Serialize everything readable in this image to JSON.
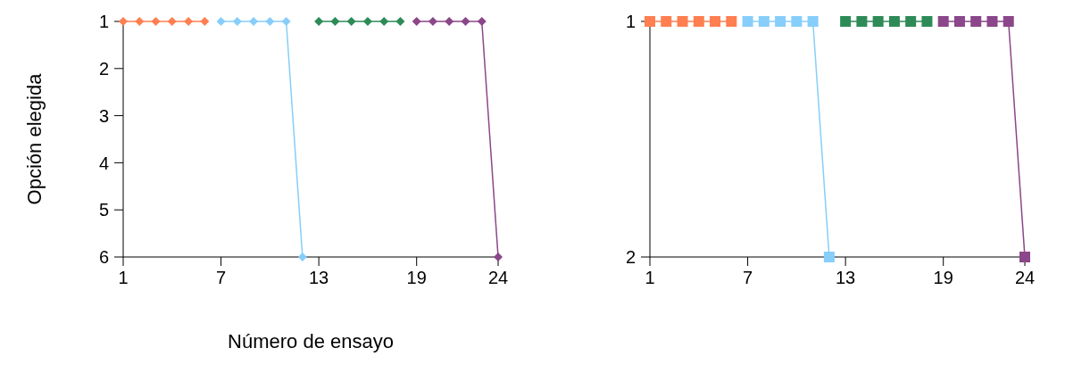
{
  "chart_data": [
    {
      "type": "line",
      "xlabel": "Número de ensayo",
      "ylabel": "Opción elegida",
      "xlim": [
        1,
        24
      ],
      "xticks": [
        1,
        7,
        13,
        19,
        24
      ],
      "ylim": [
        6,
        1
      ],
      "yticks": [
        1,
        2,
        3,
        4,
        5,
        6
      ],
      "marker": "diamond",
      "series": [
        {
          "color": "#ff7f50",
          "x": [
            1,
            2,
            3,
            4,
            5,
            6
          ],
          "values": [
            1,
            1,
            1,
            1,
            1,
            1
          ]
        },
        {
          "color": "#87cefa",
          "x": [
            7,
            8,
            9,
            10,
            11,
            12
          ],
          "values": [
            1,
            1,
            1,
            1,
            1,
            6
          ]
        },
        {
          "color": "#2e8b57",
          "x": [
            13,
            14,
            15,
            16,
            17,
            18
          ],
          "values": [
            1,
            1,
            1,
            1,
            1,
            1
          ]
        },
        {
          "color": "#8b4789",
          "x": [
            19,
            20,
            21,
            22,
            23,
            24
          ],
          "values": [
            1,
            1,
            1,
            1,
            1,
            6
          ]
        }
      ]
    },
    {
      "type": "line",
      "xlim": [
        1,
        24
      ],
      "xticks": [
        1,
        7,
        13,
        19,
        24
      ],
      "ylim": [
        2,
        1
      ],
      "yticks": [
        1,
        2
      ],
      "marker": "square",
      "series": [
        {
          "color": "#ff7f50",
          "x": [
            1,
            2,
            3,
            4,
            5,
            6
          ],
          "values": [
            1,
            1,
            1,
            1,
            1,
            1
          ]
        },
        {
          "color": "#87cefa",
          "x": [
            7,
            8,
            9,
            10,
            11,
            12
          ],
          "values": [
            1,
            1,
            1,
            1,
            1,
            2
          ]
        },
        {
          "color": "#2e8b57",
          "x": [
            13,
            14,
            15,
            16,
            17,
            18
          ],
          "values": [
            1,
            1,
            1,
            1,
            1,
            1
          ]
        },
        {
          "color": "#8b4789",
          "x": [
            19,
            20,
            21,
            22,
            23,
            24
          ],
          "values": [
            1,
            1,
            1,
            1,
            1,
            2
          ]
        }
      ]
    }
  ]
}
